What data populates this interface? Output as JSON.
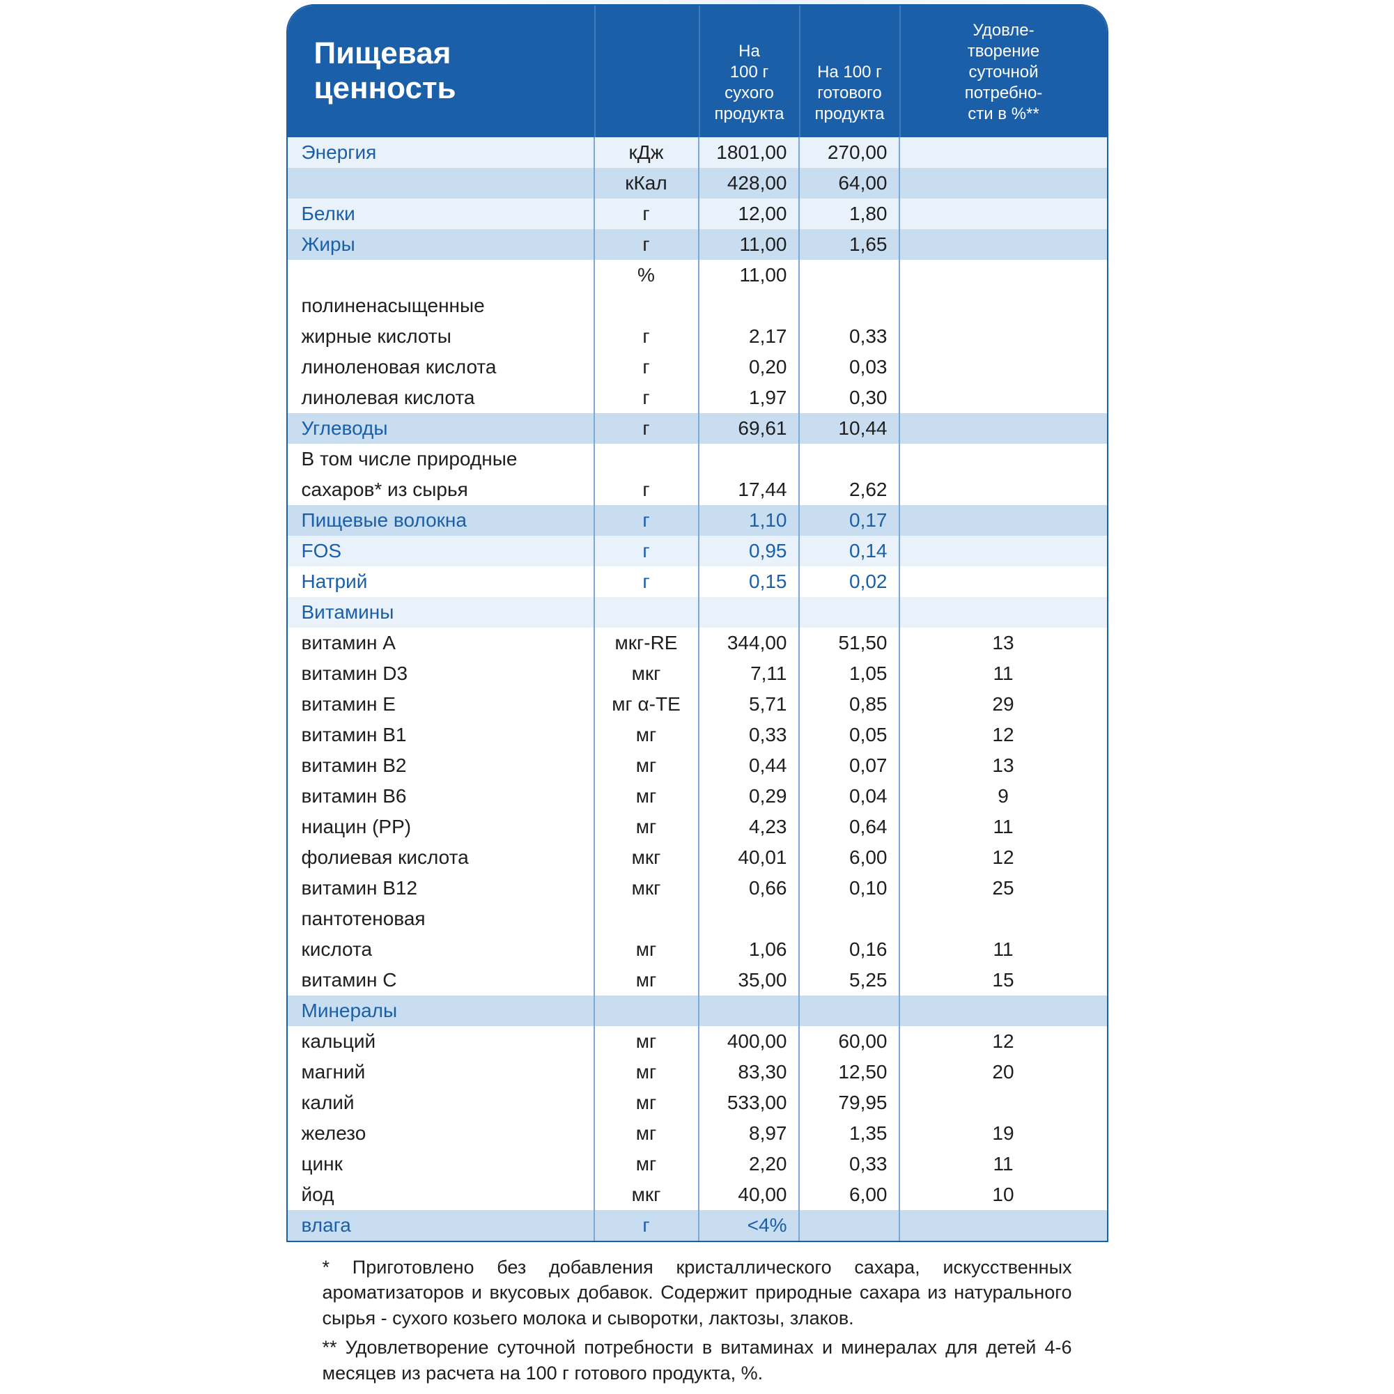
{
  "colors": {
    "brand_blue": "#1b5fa8",
    "header_divider": "#3f7cc0",
    "cell_divider": "#7ea9d6",
    "band_light": "#e9f1fa",
    "band_mid": "#c9ddf1",
    "text": "#1e1e1e"
  },
  "title": "Пищевая\nценность",
  "columns": {
    "unit_header": "",
    "dry": "На\n100 г\nсухого\nпродукта",
    "ready": "На 100 г\nготового\nпродукта",
    "pct": "Удовле-\nтворение\nсуточной\nпотребно-\nсти в %**"
  },
  "rows": [
    {
      "name": "Энергия",
      "unit": "кДж",
      "dry": "1801,00",
      "ready": "270,00",
      "pct": "",
      "section": true,
      "band": "lt"
    },
    {
      "name": "",
      "unit": "кКал",
      "dry": "428,00",
      "ready": "64,00",
      "pct": "",
      "band": "md"
    },
    {
      "name": "Белки",
      "unit": "г",
      "dry": "12,00",
      "ready": "1,80",
      "pct": "",
      "section": true,
      "band": "lt"
    },
    {
      "name": "Жиры",
      "unit": "г",
      "dry": "11,00",
      "ready": "1,65",
      "pct": "",
      "section": true,
      "band": "md"
    },
    {
      "name": "",
      "unit": "%",
      "dry": "11,00",
      "ready": "",
      "pct": ""
    },
    {
      "name": "полиненасыщенные",
      "unit": "",
      "dry": "",
      "ready": "",
      "pct": ""
    },
    {
      "name": "жирные кислоты",
      "unit": "г",
      "dry": "2,17",
      "ready": "0,33",
      "pct": ""
    },
    {
      "name": "линоленовая кислота",
      "unit": "г",
      "dry": "0,20",
      "ready": "0,03",
      "pct": ""
    },
    {
      "name": "линолевая кислота",
      "unit": "г",
      "dry": "1,97",
      "ready": "0,30",
      "pct": ""
    },
    {
      "name": "Углеводы",
      "unit": "г",
      "dry": "69,61",
      "ready": "10,44",
      "pct": "",
      "section": true,
      "band": "md"
    },
    {
      "name": "В том числе природные",
      "unit": "",
      "dry": "",
      "ready": "",
      "pct": ""
    },
    {
      "name": "сахаров* из сырья",
      "unit": "г",
      "dry": "17,44",
      "ready": "2,62",
      "pct": ""
    },
    {
      "name": "Пищевые волокна",
      "unit": "г",
      "dry": "1,10",
      "ready": "0,17",
      "pct": "",
      "blue": true,
      "band": "md"
    },
    {
      "name": "FOS",
      "unit": "г",
      "dry": "0,95",
      "ready": "0,14",
      "pct": "",
      "blue": true,
      "band": "lt"
    },
    {
      "name": "Натрий",
      "unit": "г",
      "dry": "0,15",
      "ready": "0,02",
      "pct": "",
      "blue": true
    },
    {
      "name": "Витамины",
      "unit": "",
      "dry": "",
      "ready": "",
      "pct": "",
      "section": true,
      "band": "lt"
    },
    {
      "name": "витамин А",
      "unit": "мкг-RE",
      "dry": "344,00",
      "ready": "51,50",
      "pct": "13"
    },
    {
      "name": "витамин D3",
      "unit": "мкг",
      "dry": "7,11",
      "ready": "1,05",
      "pct": "11"
    },
    {
      "name": "витамин Е",
      "unit": "мг α-TE",
      "dry": "5,71",
      "ready": "0,85",
      "pct": "29"
    },
    {
      "name": "витамин В1",
      "unit": "мг",
      "dry": "0,33",
      "ready": "0,05",
      "pct": "12"
    },
    {
      "name": "витамин В2",
      "unit": "мг",
      "dry": "0,44",
      "ready": "0,07",
      "pct": "13"
    },
    {
      "name": "витамин В6",
      "unit": "мг",
      "dry": "0,29",
      "ready": "0,04",
      "pct": "9"
    },
    {
      "name": "ниацин (PP)",
      "unit": "мг",
      "dry": "4,23",
      "ready": "0,64",
      "pct": "11"
    },
    {
      "name": "фолиевая кислота",
      "unit": "мкг",
      "dry": "40,01",
      "ready": "6,00",
      "pct": "12"
    },
    {
      "name": "витамин В12",
      "unit": "мкг",
      "dry": "0,66",
      "ready": "0,10",
      "pct": "25"
    },
    {
      "name": "пантотеновая",
      "unit": "",
      "dry": "",
      "ready": "",
      "pct": ""
    },
    {
      "name": "кислота",
      "unit": "мг",
      "dry": "1,06",
      "ready": "0,16",
      "pct": "11"
    },
    {
      "name": "витамин С",
      "unit": "мг",
      "dry": "35,00",
      "ready": "5,25",
      "pct": "15"
    },
    {
      "name": "Минералы",
      "unit": "",
      "dry": "",
      "ready": "",
      "pct": "",
      "section": true,
      "band": "md"
    },
    {
      "name": "кальций",
      "unit": "мг",
      "dry": "400,00",
      "ready": "60,00",
      "pct": "12"
    },
    {
      "name": "магний",
      "unit": "мг",
      "dry": "83,30",
      "ready": "12,50",
      "pct": "20"
    },
    {
      "name": "калий",
      "unit": "мг",
      "dry": "533,00",
      "ready": "79,95",
      "pct": ""
    },
    {
      "name": "железо",
      "unit": "мг",
      "dry": "8,97",
      "ready": "1,35",
      "pct": "19"
    },
    {
      "name": "цинк",
      "unit": "мг",
      "dry": "2,20",
      "ready": "0,33",
      "pct": "11"
    },
    {
      "name": "йод",
      "unit": "мкг",
      "dry": "40,00",
      "ready": "6,00",
      "pct": "10"
    },
    {
      "name": "влага",
      "unit": "г",
      "dry": "<4%",
      "ready": "",
      "pct": "",
      "blue": true,
      "band": "md"
    }
  ],
  "footnotes": [
    "* Приготовлено без добавления кристаллического сахара, искусственных ароматизаторов и вкусовых добавок. Содержит природные сахара из натурального сырья - сухого козьего молока и сыворотки, лактозы, злаков.",
    "** Удовлетворение суточной потребности в витаминах и минералах для детей 4-6 месяцев из расчета на 100 г готового продукта, %."
  ]
}
